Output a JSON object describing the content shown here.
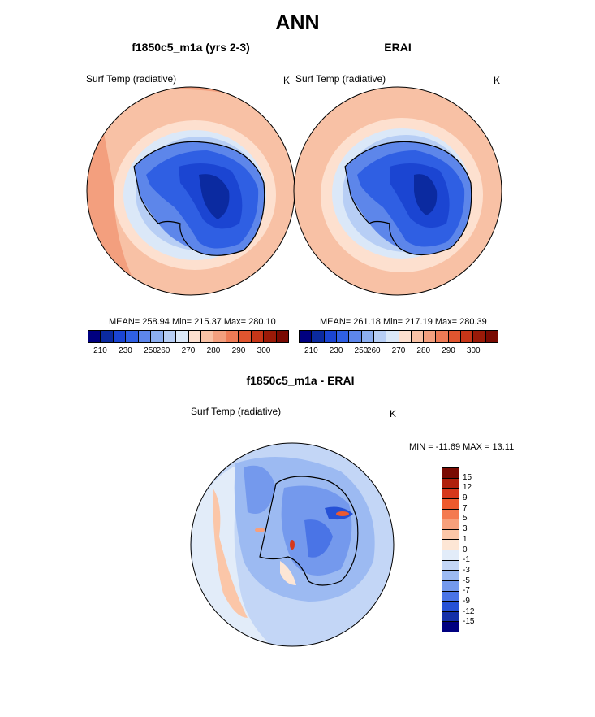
{
  "title": "ANN",
  "panels": [
    {
      "title": "f1850c5_m1a (yrs 2-3)",
      "field_label": "Surf Temp (radiative)",
      "units": "K",
      "stats": "MEAN= 258.94  Min= 215.37  Max= 280.10"
    },
    {
      "title": "ERAI",
      "field_label": "Surf Temp (radiative)",
      "units": "K",
      "stats": "MEAN= 261.18  Min= 217.19  Max= 280.39"
    }
  ],
  "abs_colorbar": {
    "colors": [
      "#000080",
      "#0b2aa0",
      "#1b45d2",
      "#2f5fe3",
      "#5d86ea",
      "#8caef0",
      "#b7cef5",
      "#dbe8f8",
      "#fde0cf",
      "#f8c1a5",
      "#f39f7e",
      "#ee7b56",
      "#e0552f",
      "#c73618",
      "#9b1a08",
      "#7a0a02"
    ],
    "tick_labels": [
      "210",
      "230",
      "250",
      "260",
      "270",
      "280",
      "290",
      "300"
    ]
  },
  "diff_panel": {
    "title": "f1850c5_m1a - ERAI",
    "field_label": "Surf Temp (radiative)",
    "units": "K",
    "minmax": "MIN = -11.69 MAX =  13.11"
  },
  "diff_colorbar": {
    "colors": [
      "#7a0a02",
      "#b0200c",
      "#d6381c",
      "#ee5a2e",
      "#f47a50",
      "#f7a07c",
      "#fbc6a8",
      "#fde6d5",
      "#e2ecf9",
      "#c3d6f6",
      "#9cbaf2",
      "#7499ed",
      "#4a74e6",
      "#2651d6",
      "#1430a8",
      "#000080"
    ],
    "tick_labels": [
      "15",
      "12",
      "9",
      "7",
      "5",
      "3",
      "1",
      "0",
      "-1",
      "-3",
      "-5",
      "-7",
      "-9",
      "-12",
      "-15"
    ]
  }
}
